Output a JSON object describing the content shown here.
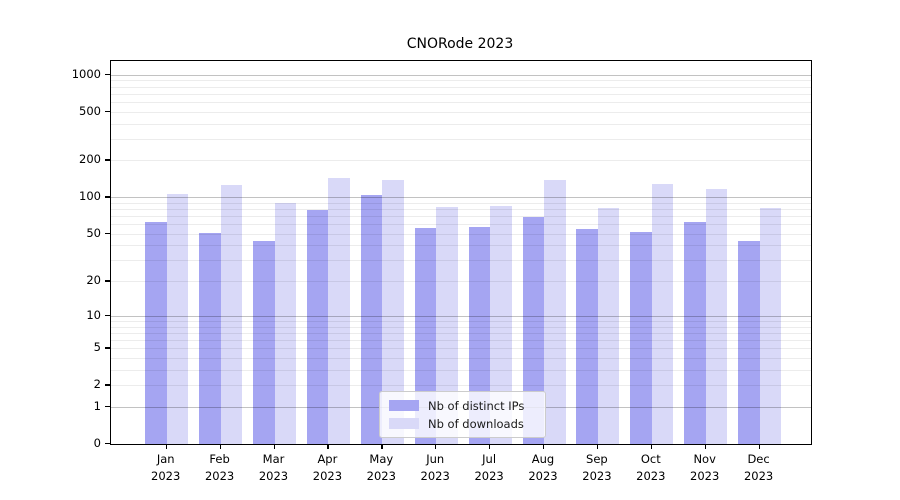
{
  "title": "CNORode 2023",
  "colors": {
    "distinct_ips": "#a5a5f2",
    "downloads": "#d9d9f8",
    "axis": "#000000",
    "grid_minor": "rgba(0,0,0,0.075)",
    "grid_major": "rgba(0,0,0,0.24)",
    "background": "#ffffff"
  },
  "legend": {
    "items": [
      {
        "label": "Nb of distinct IPs",
        "color_key": "distinct_ips"
      },
      {
        "label": "Nb of downloads",
        "color_key": "downloads"
      }
    ]
  },
  "chart_data": {
    "type": "bar",
    "title": "CNORode 2023",
    "months": [
      "Jan",
      "Feb",
      "Mar",
      "Apr",
      "May",
      "Jun",
      "Jul",
      "Aug",
      "Sep",
      "Oct",
      "Nov",
      "Dec"
    ],
    "year": "2023",
    "categories": [
      "Jan 2023",
      "Feb 2023",
      "Mar 2023",
      "Apr 2023",
      "May 2023",
      "Jun 2023",
      "Jul 2023",
      "Aug 2023",
      "Sep 2023",
      "Oct 2023",
      "Nov 2023",
      "Dec 2023"
    ],
    "series": [
      {
        "name": "Nb of distinct IPs",
        "key": "distinct_ips",
        "values": [
          63,
          51,
          44,
          79,
          104,
          56,
          57,
          69,
          55,
          52,
          63,
          44
        ]
      },
      {
        "name": "Nb of downloads",
        "key": "downloads",
        "values": [
          107,
          126,
          89,
          145,
          138,
          84,
          85,
          138,
          81,
          129,
          118,
          82
        ]
      }
    ],
    "y_ticks": [
      0,
      1,
      2,
      5,
      10,
      20,
      50,
      100,
      200,
      500,
      1000
    ],
    "y_scale": "log10(1+x)",
    "ylim": [
      0,
      1300
    ],
    "xlabel": "",
    "ylabel": "",
    "grid": true,
    "legend_position": "lower center"
  }
}
